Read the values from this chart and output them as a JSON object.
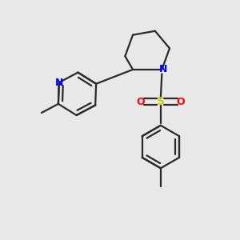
{
  "bg_color": "#e8e8e8",
  "bond_color": "#2a2a2a",
  "N_color": "#0000ff",
  "O_color": "#ff0000",
  "S_color": "#cccc00",
  "lw": 1.6,
  "figsize": [
    3.0,
    3.0
  ],
  "dpi": 100,
  "xlim": [
    0,
    10
  ],
  "ylim": [
    0,
    10
  ]
}
